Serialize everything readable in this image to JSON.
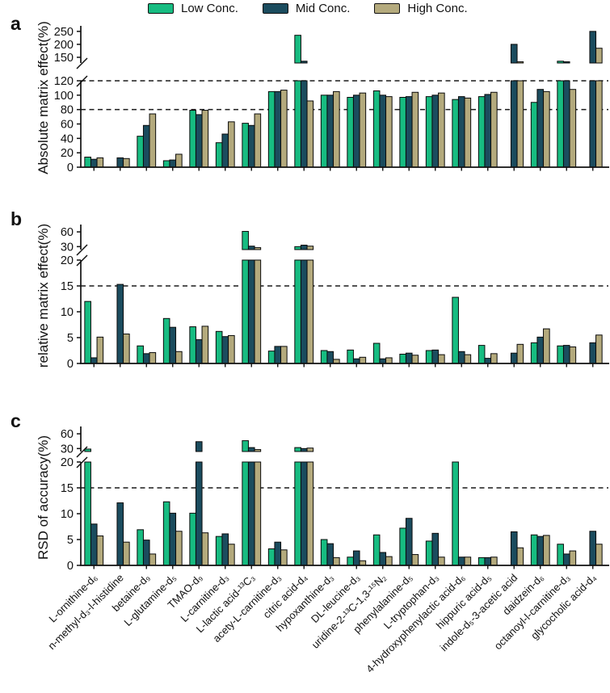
{
  "figure": {
    "panel_letters": {
      "a": "a",
      "b": "b",
      "c": "c"
    }
  },
  "chart_data": {
    "type": "bar",
    "layout": "three stacked grouped-bar panels with broken y-axes, shared x categories, legend top",
    "legend": [
      {
        "label": "Low Conc.",
        "color": "#17bc81"
      },
      {
        "label": "Mid Conc.",
        "color": "#1b4c5e"
      },
      {
        "label": "High Conc.",
        "color": "#b4aa7d"
      }
    ],
    "categories": [
      "L-ornithine-d₆",
      "n-methyl-d₃-l-histidine",
      "betaine-d₉",
      "L-glutamine-d₅",
      "TMAO-d₉",
      "L-carnitine-d₃",
      "L-lactic acid-¹³C₃",
      "acety-L-carnitine-d₃",
      "citric acid-d₄",
      "hypoxanthine-d₃",
      "DL-leucine-d₃",
      "uridine-2-¹³C-1,3-¹⁵N₂",
      "phenylalanine-d₅",
      "L-tryptophan-d₃",
      "4-hydroxyphenylactic acid-d₆",
      "hippuric acid-d₅",
      "indole-d₅-3-acetic acid",
      "daidzein-d₆",
      "octanoyl-l-carnitine-d₃",
      "glycocholic acid-d₄"
    ],
    "panels": [
      {
        "letter": "a",
        "ylabel": "Absolute matrix effect(%)",
        "lower_ticks": [
          0,
          20,
          40,
          60,
          80,
          100,
          120
        ],
        "upper_ticks": [
          150,
          200,
          250
        ],
        "lower_range": [
          0,
          120
        ],
        "upper_range": [
          128,
          262
        ],
        "dashed_lines": [
          80,
          120
        ],
        "clip": 120,
        "series": [
          {
            "name": "Low Conc.",
            "values": [
              14,
              null,
              43,
              9,
              79,
              34,
              61,
              105,
              235,
              100,
              97,
              106,
              97,
              98,
              94,
              98,
              null,
              90,
              135,
              null
            ]
          },
          {
            "name": "Mid Conc.",
            "values": [
              11,
              13,
              58,
              10,
              73,
              46,
              58,
              105,
              135,
              100,
              100,
              100,
              98,
              100,
              98,
              101,
              200,
              108,
              130,
              250
            ]
          },
          {
            "name": "High Conc.",
            "values": [
              13,
              12,
              74,
              18,
              79,
              63,
              74,
              107,
              92,
              105,
              103,
              98,
              104,
              103,
              96,
              104,
              132,
              105,
              108,
              185
            ]
          }
        ]
      },
      {
        "letter": "b",
        "ylabel": "relative matrix effect(%)",
        "lower_ticks": [
          0,
          5,
          10,
          15,
          20
        ],
        "upper_ticks": [
          30,
          60
        ],
        "lower_range": [
          0,
          20
        ],
        "upper_range": [
          24,
          70
        ],
        "dashed_lines": [
          15
        ],
        "clip": 20,
        "series": [
          {
            "name": "Low Conc.",
            "values": [
              12,
              null,
              3.4,
              8.7,
              7.1,
              6.2,
              61,
              2.4,
              30,
              2.5,
              2.6,
              3.9,
              1.8,
              2.5,
              12.8,
              3.5,
              null,
              4,
              3.4,
              null
            ]
          },
          {
            "name": "Mid Conc.",
            "values": [
              1.1,
              15.3,
              1.9,
              7,
              4.6,
              5.2,
              31,
              3.3,
              33,
              2.3,
              0.9,
              0.9,
              2,
              2.6,
              2.3,
              1,
              2,
              5.1,
              3.5,
              4
            ]
          },
          {
            "name": "High Conc.",
            "values": [
              5.1,
              5.7,
              2.1,
              2.3,
              7.2,
              5.4,
              28,
              3.3,
              31,
              0.8,
              1.2,
              1.1,
              1.6,
              1.7,
              1.7,
              1.9,
              3.7,
              6.7,
              3.2,
              5.5
            ]
          }
        ]
      },
      {
        "letter": "c",
        "ylabel": "RSD of accuracy(%)",
        "lower_ticks": [
          0,
          5,
          10,
          15,
          20
        ],
        "upper_ticks": [
          30,
          60
        ],
        "lower_range": [
          0,
          20
        ],
        "upper_range": [
          24,
          70
        ],
        "dashed_lines": [
          15
        ],
        "clip": 20,
        "series": [
          {
            "name": "Low Conc.",
            "values": [
              29,
              null,
              6.9,
              12.3,
              10.1,
              5.6,
              46,
              3.2,
              32,
              5,
              1.6,
              5.9,
              7.2,
              4.7,
              20,
              1.5,
              null,
              5.9,
              4.1,
              null
            ]
          },
          {
            "name": "Mid Conc.",
            "values": [
              8,
              12.1,
              4.9,
              10.1,
              44,
              6.1,
              32,
              4.5,
              30,
              4.2,
              2.8,
              2.5,
              9.1,
              6.2,
              1.6,
              1.5,
              6.5,
              5.6,
              2.2,
              6.6
            ]
          },
          {
            "name": "High Conc.",
            "values": [
              5.7,
              4.5,
              2.2,
              6.6,
              6.3,
              4.1,
              28,
              3,
              31,
              1.5,
              0.9,
              1.7,
              2.1,
              1.6,
              1.6,
              1.6,
              3.4,
              5.8,
              2.8,
              4.1
            ]
          }
        ]
      }
    ]
  }
}
